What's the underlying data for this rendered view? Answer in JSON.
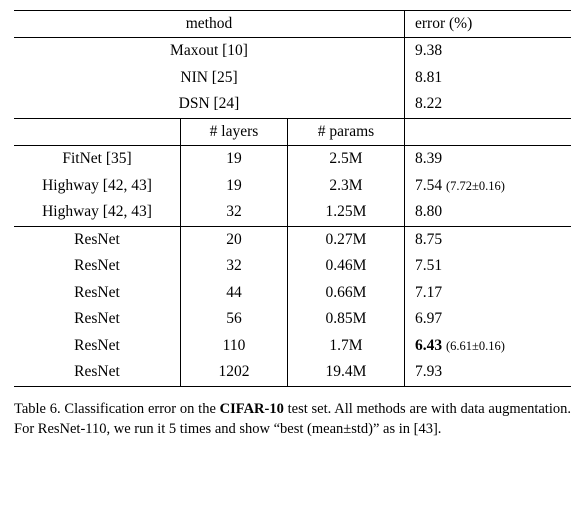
{
  "table": {
    "header_method": "method",
    "header_error": "error (%)",
    "header_layers": "# layers",
    "header_params": "# params",
    "section1": [
      {
        "method": "Maxout [10]",
        "error": "9.38"
      },
      {
        "method": "NIN [25]",
        "error": "8.81"
      },
      {
        "method": "DSN [24]",
        "error": "8.22"
      }
    ],
    "section2": [
      {
        "method": "FitNet [35]",
        "layers": "19",
        "params": "2.5M",
        "error": "8.39",
        "extra": ""
      },
      {
        "method": "Highway [42, 43]",
        "layers": "19",
        "params": "2.3M",
        "error": "7.54",
        "extra": "(7.72±0.16)"
      },
      {
        "method": "Highway [42, 43]",
        "layers": "32",
        "params": "1.25M",
        "error": "8.80",
        "extra": ""
      }
    ],
    "section3": [
      {
        "method": "ResNet",
        "layers": "20",
        "params": "0.27M",
        "error": "8.75",
        "bold": false,
        "extra": ""
      },
      {
        "method": "ResNet",
        "layers": "32",
        "params": "0.46M",
        "error": "7.51",
        "bold": false,
        "extra": ""
      },
      {
        "method": "ResNet",
        "layers": "44",
        "params": "0.66M",
        "error": "7.17",
        "bold": false,
        "extra": ""
      },
      {
        "method": "ResNet",
        "layers": "56",
        "params": "0.85M",
        "error": "6.97",
        "bold": false,
        "extra": ""
      },
      {
        "method": "ResNet",
        "layers": "110",
        "params": "1.7M",
        "error": "6.43",
        "bold": true,
        "extra": "(6.61±0.16)"
      },
      {
        "method": "ResNet",
        "layers": "1202",
        "params": "19.4M",
        "error": "7.93",
        "bold": false,
        "extra": ""
      }
    ]
  },
  "caption": {
    "prefix": "Table 6. Classification error on the ",
    "bold": "CIFAR-10",
    "suffix": " test set. All methods are with data augmentation. For ResNet-110, we run it 5 times and show “best (mean±std)” as in [43]."
  }
}
